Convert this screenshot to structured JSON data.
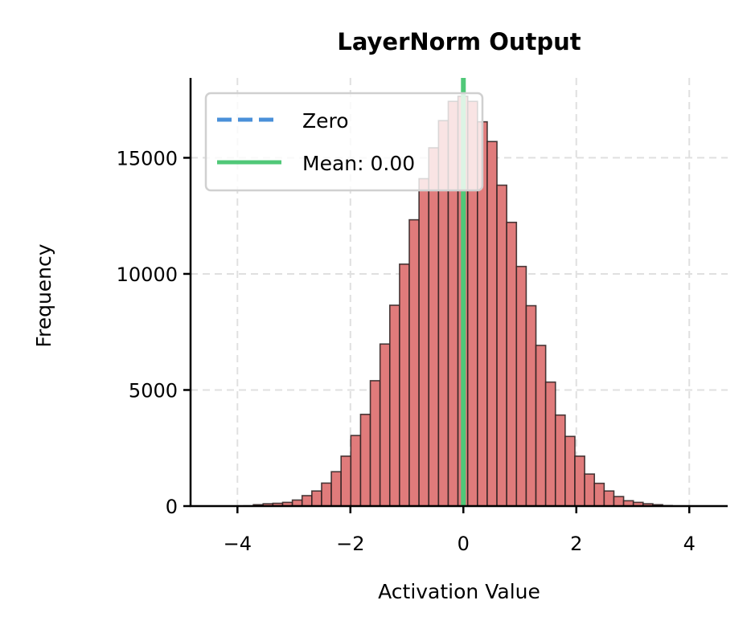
{
  "chart_data": {
    "type": "bar",
    "title": "LayerNorm Output",
    "xlabel": "Activation Value",
    "ylabel": "Frequency",
    "xlim": [
      -4.83,
      4.68
    ],
    "ylim": [
      0,
      18440
    ],
    "xticks": [
      -4,
      -2,
      0,
      2,
      4
    ],
    "xtick_labels": [
      "−4",
      "−2",
      "0",
      "2",
      "4"
    ],
    "yticks": [
      0,
      5000,
      10000,
      15000
    ],
    "ytick_labels": [
      "0",
      "5000",
      "10000",
      "15000"
    ],
    "grid": true,
    "legend_position": "top-left",
    "histogram": {
      "bin_start": -3.89,
      "bin_width": 0.1725,
      "values": [
        10,
        60,
        100,
        120,
        160,
        260,
        450,
        650,
        990,
        1480,
        2150,
        3040,
        3950,
        5400,
        6980,
        8650,
        10420,
        12330,
        14100,
        15430,
        16600,
        17430,
        17650,
        17430,
        16550,
        15700,
        13820,
        12220,
        10320,
        8630,
        6920,
        5340,
        3920,
        3000,
        2150,
        1380,
        980,
        650,
        410,
        230,
        160,
        100,
        60,
        20
      ]
    },
    "reference_lines": [
      {
        "label": "Zero",
        "x": 0,
        "style": "dashed",
        "color": "#4a90d9"
      },
      {
        "label": "Mean: 0.00",
        "x": 0.0,
        "style": "solid",
        "color": "#50c878"
      }
    ],
    "colors": {
      "bar_fill": "#e07b7b",
      "bar_edge": "#2a2020",
      "grid": "#e0e0e0"
    }
  }
}
